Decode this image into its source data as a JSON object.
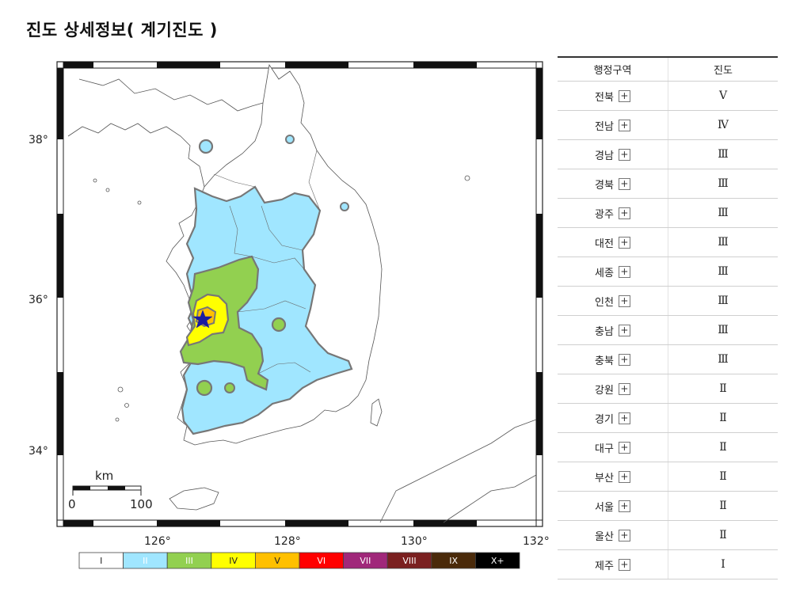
{
  "page": {
    "title": "진도 상세정보( 계기진도 )"
  },
  "map": {
    "lat_labels": [
      "38°",
      "36°",
      "34°"
    ],
    "lon_labels": [
      "126°",
      "128°",
      "130°",
      "132°"
    ],
    "scale": {
      "unit": "km",
      "start": "0",
      "end": "100"
    },
    "epicenter_icon": "star-icon",
    "colors": {
      "I": "#ffffff",
      "II": "#a0e6ff",
      "III": "#92d050",
      "IV": "#ffff00",
      "V": "#ffc000",
      "VI": "#ff0000",
      "VII": "#a0287a",
      "VIII": "#7a2020",
      "IX": "#4a2a0a",
      "X+": "#000000"
    }
  },
  "legend": [
    {
      "label": "I",
      "color": "#ffffff",
      "text_color": "#222222"
    },
    {
      "label": "II",
      "color": "#a0e6ff",
      "text_color": "#ffffff"
    },
    {
      "label": "III",
      "color": "#92d050",
      "text_color": "#ffffff"
    },
    {
      "label": "IV",
      "color": "#ffff00",
      "text_color": "#222222"
    },
    {
      "label": "V",
      "color": "#ffc000",
      "text_color": "#222222"
    },
    {
      "label": "VI",
      "color": "#ff0000",
      "text_color": "#ffffff"
    },
    {
      "label": "VII",
      "color": "#a0287a",
      "text_color": "#ffffff"
    },
    {
      "label": "VIII",
      "color": "#7a2020",
      "text_color": "#ffffff"
    },
    {
      "label": "IX",
      "color": "#4a2a0a",
      "text_color": "#ffffff"
    },
    {
      "label": "X+",
      "color": "#000000",
      "text_color": "#ffffff"
    }
  ],
  "table": {
    "headers": {
      "region": "행정구역",
      "intensity": "진도"
    },
    "expand_symbol": "+",
    "rows": [
      {
        "region": "전북",
        "intensity": "Ⅴ"
      },
      {
        "region": "전남",
        "intensity": "Ⅳ"
      },
      {
        "region": "경남",
        "intensity": "Ⅲ"
      },
      {
        "region": "경북",
        "intensity": "Ⅲ"
      },
      {
        "region": "광주",
        "intensity": "Ⅲ"
      },
      {
        "region": "대전",
        "intensity": "Ⅲ"
      },
      {
        "region": "세종",
        "intensity": "Ⅲ"
      },
      {
        "region": "인천",
        "intensity": "Ⅲ"
      },
      {
        "region": "충남",
        "intensity": "Ⅲ"
      },
      {
        "region": "충북",
        "intensity": "Ⅲ"
      },
      {
        "region": "강원",
        "intensity": "Ⅱ"
      },
      {
        "region": "경기",
        "intensity": "Ⅱ"
      },
      {
        "region": "대구",
        "intensity": "Ⅱ"
      },
      {
        "region": "부산",
        "intensity": "Ⅱ"
      },
      {
        "region": "서울",
        "intensity": "Ⅱ"
      },
      {
        "region": "울산",
        "intensity": "Ⅱ"
      },
      {
        "region": "제주",
        "intensity": "Ⅰ"
      }
    ]
  }
}
